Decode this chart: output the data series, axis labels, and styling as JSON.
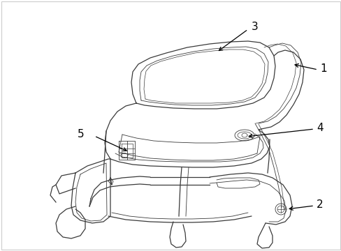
{
  "background_color": "#ffffff",
  "line_color": "#3a3a3a",
  "label_color": "#000000",
  "figsize": [
    4.89,
    3.6
  ],
  "dpi": 100,
  "border_color": "#cccccc"
}
